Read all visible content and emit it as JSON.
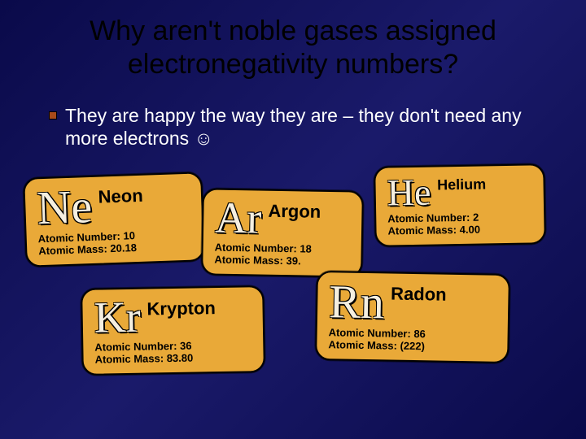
{
  "title": "Why aren't noble gases assigned electronegativity numbers?",
  "bullet_text": "They are happy the way they are – they don't need any more electrons ☺",
  "labels": {
    "atomic_number": "Atomic Number:",
    "atomic_mass": "Atomic Mass:"
  },
  "cards": {
    "ne": {
      "symbol": "Ne",
      "name": "Neon",
      "atomic_number": "10",
      "atomic_mass": "20.18"
    },
    "ar": {
      "symbol": "Ar",
      "name": "Argon",
      "atomic_number": "18",
      "atomic_mass": "39."
    },
    "he": {
      "symbol": "He",
      "name": "Helium",
      "atomic_number": "2",
      "atomic_mass": "4.00"
    },
    "kr": {
      "symbol": "Kr",
      "name": "Krypton",
      "atomic_number": "36",
      "atomic_mass": "83.80"
    },
    "rn": {
      "symbol": "Rn",
      "name": "Radon",
      "atomic_number": "86",
      "atomic_mass": "(222)"
    }
  },
  "colors": {
    "background_gradient_start": "#0a0a4a",
    "background_gradient_mid": "#1a1a6a",
    "card_bg": "#e9a938",
    "symbol_fill": "#f5efe0",
    "title_color": "#000000",
    "body_text": "#ffffff",
    "bullet_color": "#a84a1a"
  }
}
